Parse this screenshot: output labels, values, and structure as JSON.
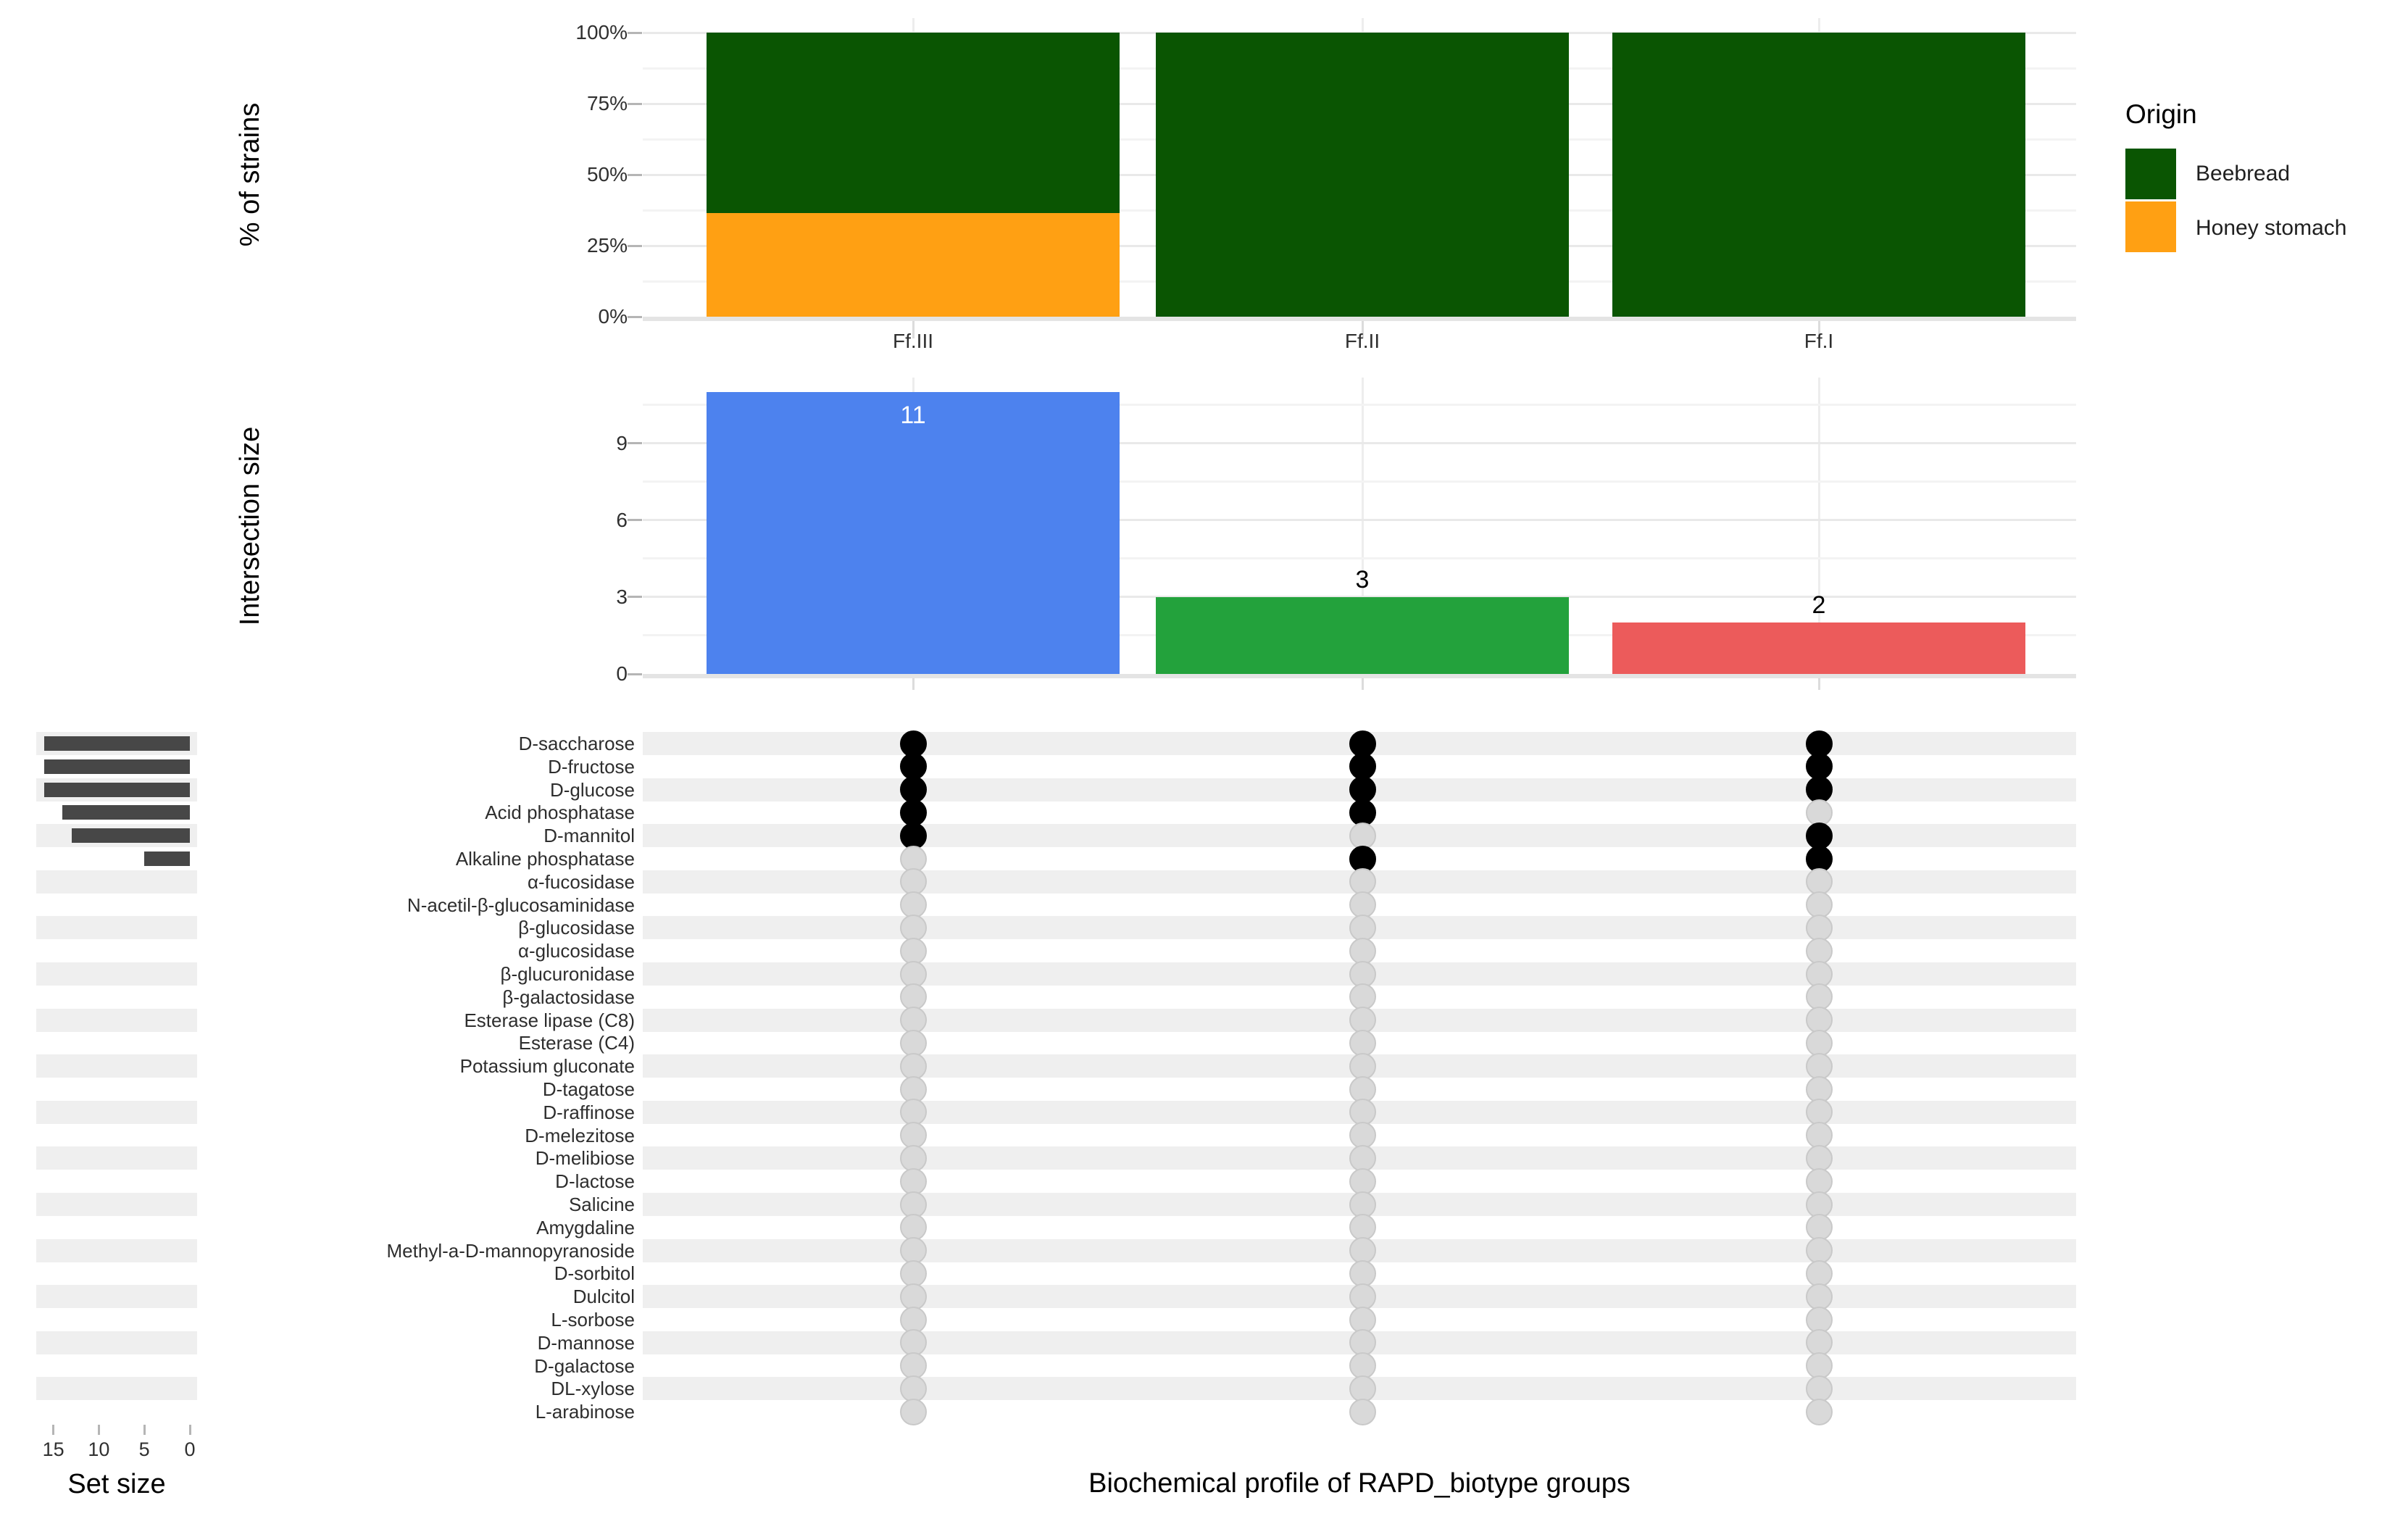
{
  "chart_data": [
    {
      "id": "origin_percent_stacked",
      "type": "bar",
      "stacked": true,
      "percent": true,
      "categories": [
        "Ff.III",
        "Ff.II",
        "Ff.I"
      ],
      "series": [
        {
          "name": "Beebread",
          "color": "#0A5502",
          "values": [
            63.6,
            100,
            100
          ]
        },
        {
          "name": "Honey stomach",
          "color": "#FFA013",
          "values": [
            36.4,
            0,
            0
          ]
        }
      ],
      "ylabel": "% of strains",
      "ytick_labels": [
        "0%",
        "25%",
        "50%",
        "75%",
        "100%"
      ],
      "ylim": [
        0,
        100
      ],
      "grid": true,
      "legend_title": "Origin",
      "legend_position": "right"
    },
    {
      "id": "intersection_size",
      "type": "bar",
      "categories": [
        "Ff.III",
        "Ff.II",
        "Ff.I"
      ],
      "values": [
        11,
        3,
        2
      ],
      "bar_colors": [
        "#4D82EE",
        "#23A23C",
        "#EC5B5B"
      ],
      "value_labels": [
        "11",
        "3",
        "2"
      ],
      "value_label_colors": [
        "#FFFFFF",
        "#000000",
        "#000000"
      ],
      "ylabel": "Intersection size",
      "yticks": [
        0,
        3,
        6,
        9
      ],
      "ylim": [
        0,
        11.6
      ],
      "grid": true
    },
    {
      "id": "upset_matrix",
      "type": "table",
      "xlabel": "Biochemical profile of RAPD_biotype groups",
      "rows": [
        "D-saccharose",
        "D-fructose",
        "D-glucose",
        "Acid phosphatase",
        "D-mannitol",
        "Alkaline phosphatase",
        "α-fucosidase",
        "N-acetil-β-glucosaminidase",
        "β-glucosidase",
        "α-glucosidase",
        "β-glucuronidase",
        "β-galactosidase",
        "Esterase lipase (C8)",
        "Esterase (C4)",
        "Potassium gluconate",
        "D-tagatose",
        "D-raffinose",
        "D-melezitose",
        "D-melibiose",
        "D-lactose",
        "Salicine",
        "Amygdaline",
        "Methyl-a-D-mannopyranoside",
        "D-sorbitol",
        "Dulcitol",
        "L-sorbose",
        "D-mannose",
        "D-galactose",
        "DL-xylose",
        "L-arabinose"
      ],
      "columns": [
        {
          "category": "Ff.III",
          "filled_rows": [
            0,
            1,
            2,
            3,
            4
          ]
        },
        {
          "category": "Ff.II",
          "filled_rows": [
            0,
            1,
            2,
            3,
            5
          ]
        },
        {
          "category": "Ff.I",
          "filled_rows": [
            0,
            1,
            2,
            4,
            5
          ]
        }
      ],
      "dot_color_filled": "#000000",
      "dot_color_empty": "#D9D9D9",
      "stripe_color": "#EFEFEF"
    },
    {
      "id": "set_size",
      "type": "bar",
      "orientation": "horizontal",
      "title": "Set size",
      "values": [
        16,
        16,
        16,
        14,
        13,
        5
      ],
      "bar_color": "#474747",
      "xtick_labels": [
        "15",
        "10",
        "5",
        "0"
      ],
      "xticks": [
        15,
        10,
        5,
        0
      ],
      "xlim_reversed": [
        15,
        0
      ]
    }
  ]
}
